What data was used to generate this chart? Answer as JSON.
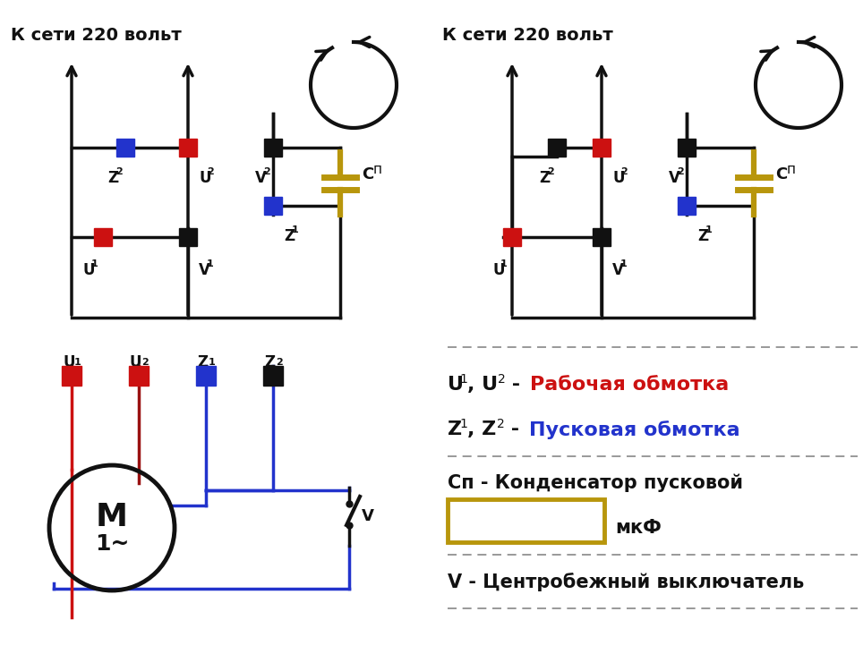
{
  "bg_color": "#ffffff",
  "red_color": "#cc1111",
  "blue_color": "#2233cc",
  "black_color": "#111111",
  "gold_color": "#b8960c",
  "wire_red": "#cc1111",
  "wire_blue": "#2233cc",
  "k_seti": "К сети 220 вольт",
  "legend_u_black": "U",
  "legend_u_red": "Рабочая обмотка",
  "legend_z_black": "Z",
  "legend_z_blue": "Пусковая обмотка",
  "legend_cp": "Сп - Конденсатор пусковой",
  "legend_v": "V - Центробежный выключатель",
  "mkf": "мкФ",
  "motor_M": "M",
  "motor_1": "1~"
}
